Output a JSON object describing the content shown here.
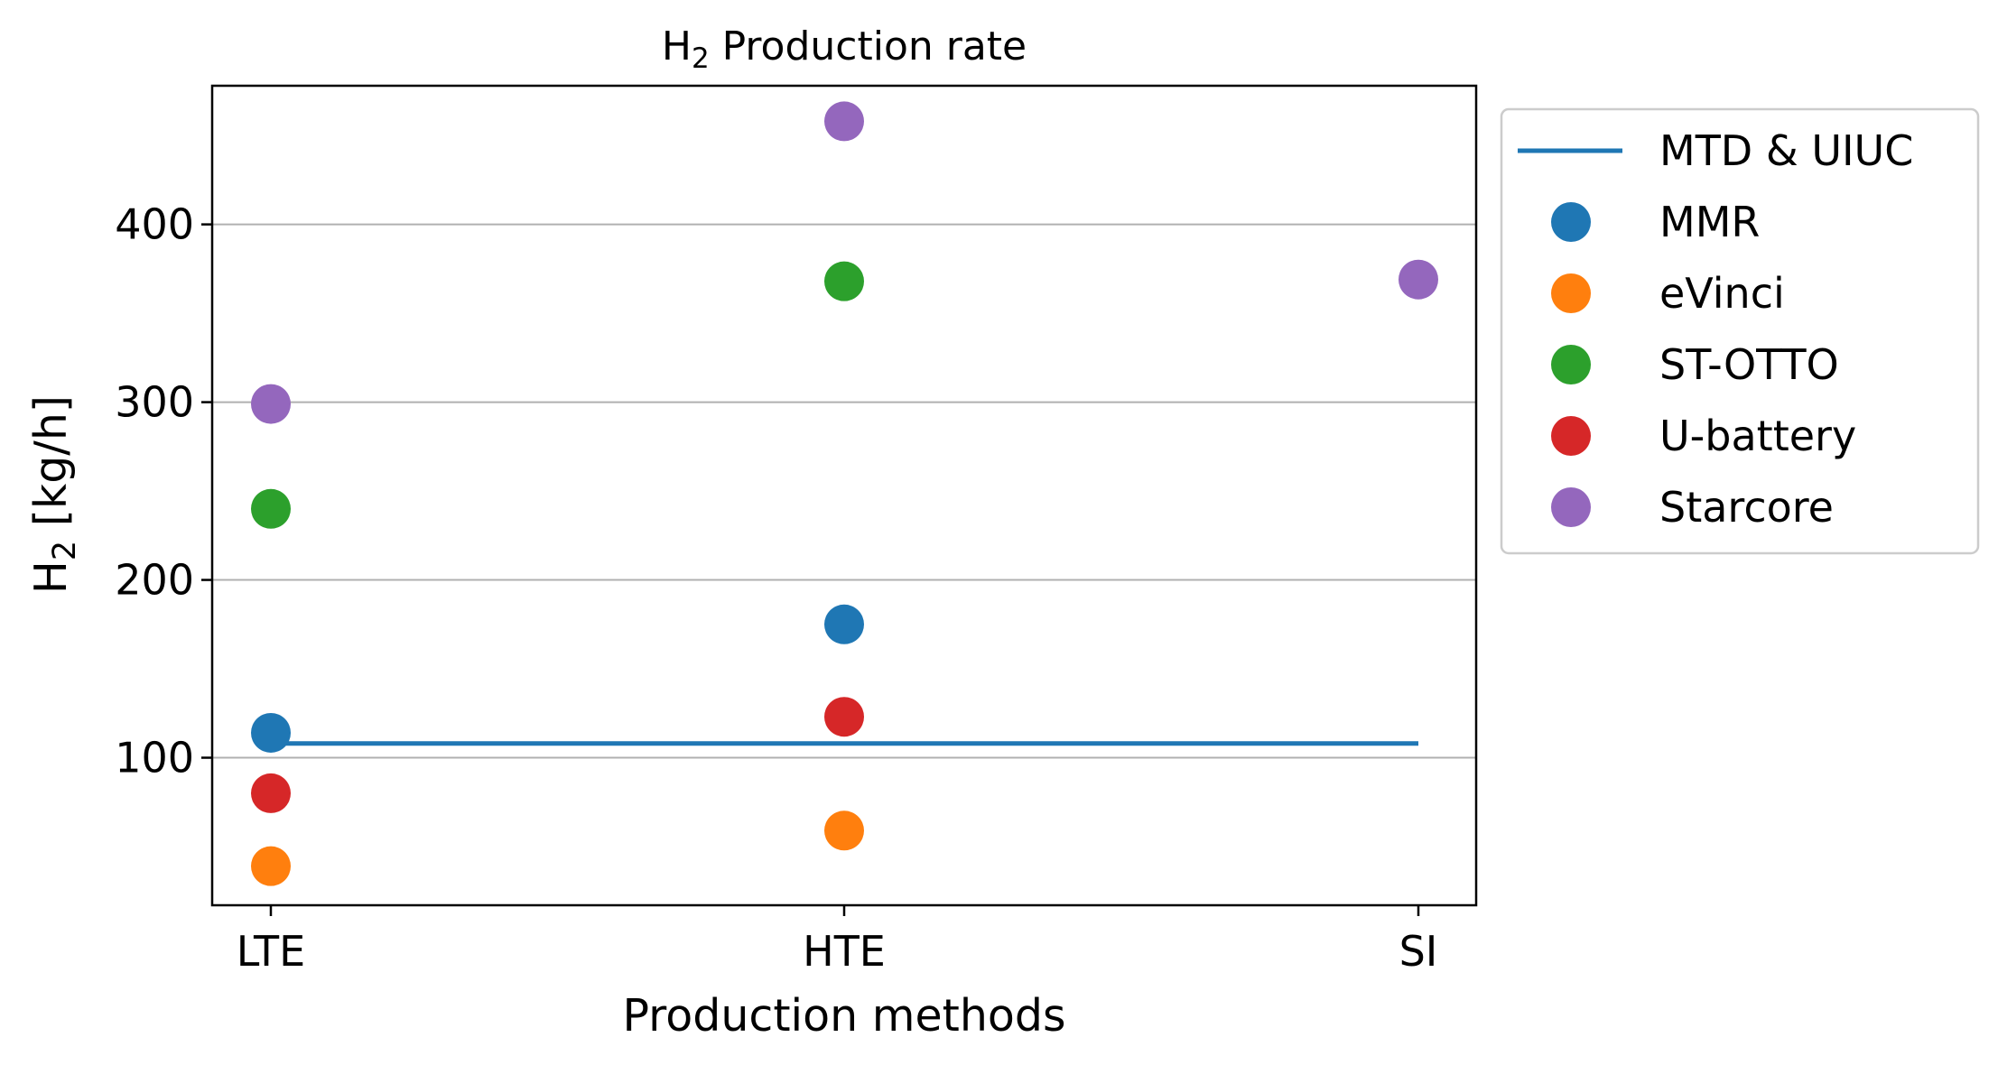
{
  "chart_data": {
    "type": "scatter",
    "title_main": "H",
    "title_sub": "2",
    "title_rest": " Production rate",
    "xlabel": "Production methods",
    "ylabel_main": "H",
    "ylabel_sub": "2",
    "ylabel_rest": " [kg/h]",
    "categories": [
      "LTE",
      "HTE",
      "SI"
    ],
    "ylim": [
      17,
      478
    ],
    "yticks": [
      100,
      200,
      300,
      400
    ],
    "grid": "y",
    "legend_position": "outside-right",
    "reference_line": {
      "name": "MTD & UIUC",
      "value": 108,
      "color": "#1f77b4"
    },
    "series": [
      {
        "name": "MMR",
        "color": "#1f77b4",
        "values": [
          114,
          175,
          null
        ]
      },
      {
        "name": "eVinci",
        "color": "#ff7f0e",
        "values": [
          39,
          59,
          null
        ]
      },
      {
        "name": "ST-OTTO",
        "color": "#2ca02c",
        "values": [
          240,
          368,
          null
        ]
      },
      {
        "name": "U-battery",
        "color": "#d62728",
        "values": [
          80,
          123,
          null
        ]
      },
      {
        "name": "Starcore",
        "color": "#9467bd",
        "values": [
          299,
          458,
          369
        ]
      }
    ]
  }
}
